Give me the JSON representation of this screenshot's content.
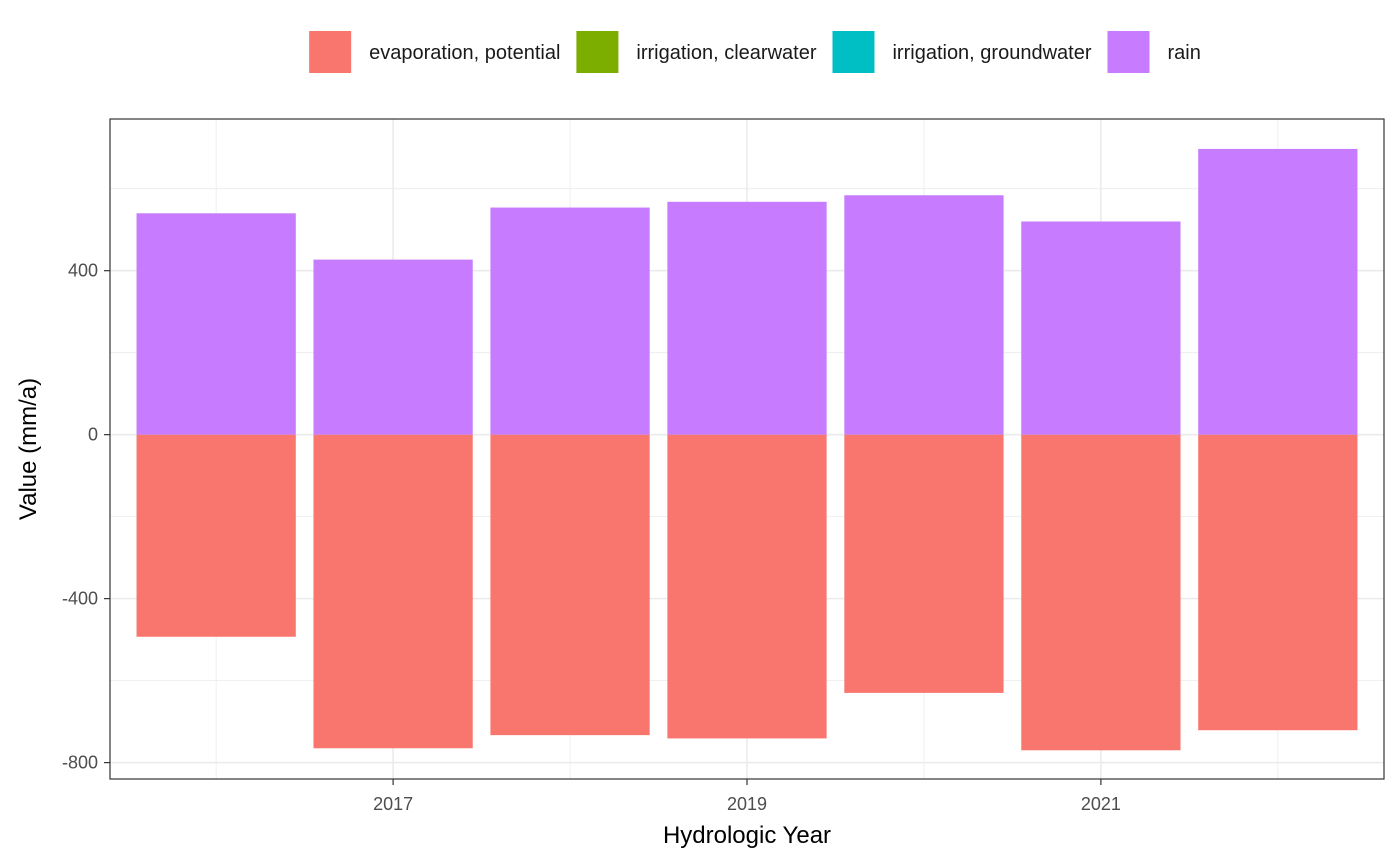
{
  "chart_data": {
    "type": "bar",
    "stacked": true,
    "xlabel": "Hydrologic Year",
    "ylabel": "Value (mm/a)",
    "x": [
      2016,
      2017,
      2018,
      2019,
      2020,
      2021,
      2022
    ],
    "x_ticks": [
      2017,
      2019,
      2021
    ],
    "x_tick_labels": [
      "2017",
      "2019",
      "2021"
    ],
    "xlim": [
      2015.4,
      2022.6
    ],
    "ylim": [
      -840,
      770
    ],
    "y_ticks": [
      -800,
      -400,
      0,
      400
    ],
    "y_tick_labels": [
      "-800",
      "-400",
      "0",
      "400"
    ],
    "grid": true,
    "legend_position": "top",
    "series": [
      {
        "name": "evaporation, potential",
        "color": "#F8766D",
        "values": [
          -493,
          -765,
          -733,
          -741,
          -630,
          -770,
          -721
        ]
      },
      {
        "name": "irrigation, clearwater",
        "color": "#7CAE00",
        "values": [
          0,
          0,
          0,
          0,
          0,
          0,
          0
        ]
      },
      {
        "name": "irrigation, groundwater",
        "color": "#00BFC4",
        "values": [
          0,
          0,
          0,
          0,
          0,
          0,
          0
        ]
      },
      {
        "name": "rain",
        "color": "#C77CFF",
        "values": [
          540,
          427,
          554,
          568,
          584,
          520,
          697
        ]
      }
    ]
  }
}
